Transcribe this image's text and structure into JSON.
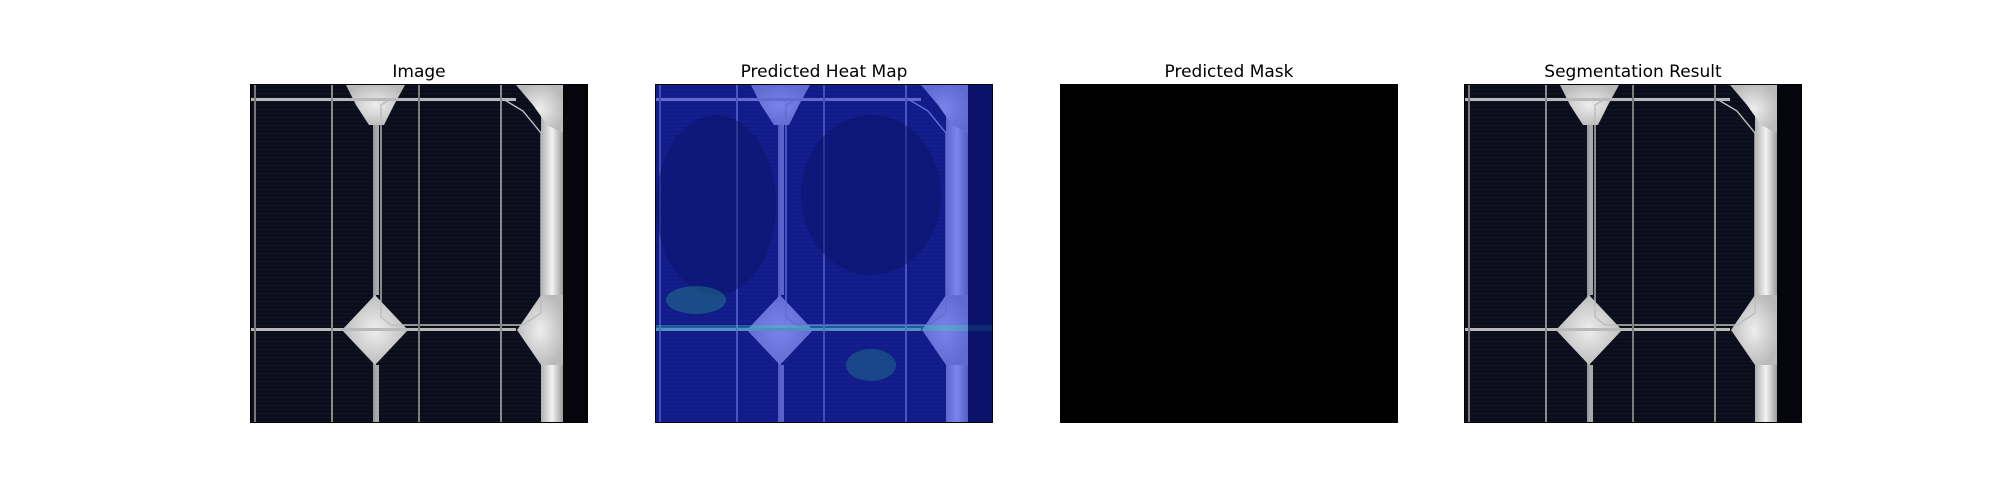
{
  "panels": [
    {
      "title": "Image"
    },
    {
      "title": "Predicted Heat Map"
    },
    {
      "title": "Predicted Mask"
    },
    {
      "title": "Segmentation Result"
    }
  ]
}
